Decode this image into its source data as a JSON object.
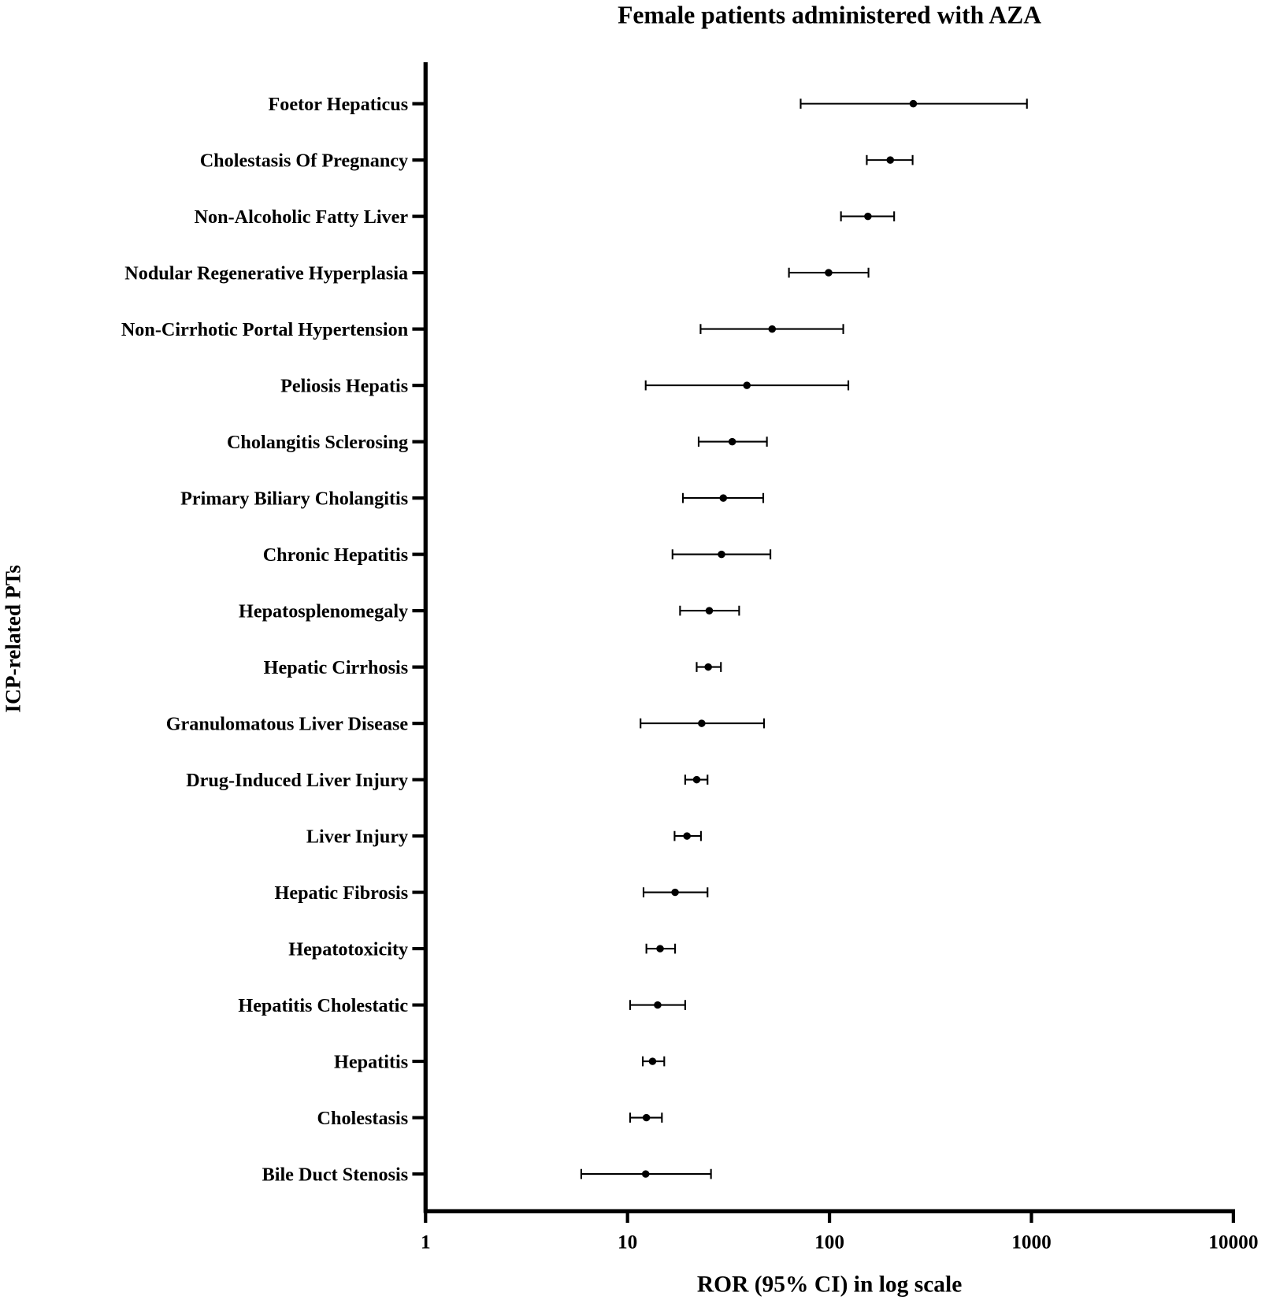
{
  "chart_data": {
    "type": "scatter",
    "subtype": "forest-plot",
    "title": "Female patients administered with AZA",
    "xlabel": "ROR (95% CI) in log scale",
    "ylabel": "ICP-related PTs",
    "xscale": "log",
    "xlim": [
      1,
      10000
    ],
    "xticks": [
      "1",
      "10",
      "100",
      "1000",
      "10000"
    ],
    "grid": false,
    "categories": [
      "Foetor Hepaticus",
      "Cholestasis Of Pregnancy",
      "Non-Alcoholic Fatty Liver",
      "Nodular Regenerative Hyperplasia",
      "Non-Cirrhotic Portal Hypertension",
      "Peliosis Hepatis",
      "Cholangitis Sclerosing",
      "Primary Biliary Cholangitis",
      "Chronic Hepatitis",
      "Hepatosplenomegaly",
      "Hepatic Cirrhosis",
      "Granulomatous Liver Disease",
      "Drug-Induced Liver Injury",
      "Liver Injury",
      "Hepatic Fibrosis",
      "Hepatotoxicity",
      "Hepatitis Cholestatic",
      "Hepatitis",
      "Cholestasis",
      "Bile Duct Stenosis"
    ],
    "ror": [
      260,
      200,
      155,
      99,
      52,
      39,
      33,
      29.8,
      29.2,
      25.4,
      25.1,
      23.3,
      22,
      19.7,
      17.2,
      14.5,
      14.1,
      13.3,
      12.4,
      12.3
    ],
    "lower": [
      72,
      153,
      114,
      63,
      23,
      12.3,
      22.5,
      18.8,
      16.7,
      18.2,
      22,
      11.6,
      19.3,
      17.1,
      12,
      12.4,
      10.3,
      11.9,
      10.3,
      5.9
    ],
    "upper": [
      950,
      258,
      209,
      156,
      117,
      124,
      49,
      47,
      51,
      35.7,
      29,
      47.4,
      24.9,
      23.1,
      24.9,
      17.2,
      19.3,
      15.2,
      14.8,
      25.9
    ]
  }
}
